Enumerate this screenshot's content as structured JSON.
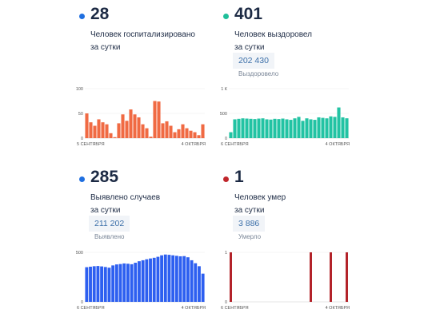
{
  "panels": [
    {
      "id": "hosp",
      "value": "28",
      "desc": [
        "Человек госпитализировано",
        "за сутки"
      ],
      "sub_value": "",
      "sub_label": "",
      "color": "#1f6fe0",
      "bar_color": "#f06a43"
    },
    {
      "id": "recov",
      "value": "401",
      "desc": [
        "Человек выздоровел",
        "за сутки"
      ],
      "sub_value": "202 430",
      "sub_label": "Выздоровело",
      "color": "#1fbf9a",
      "bar_color": "#22c3a3"
    },
    {
      "id": "cases",
      "value": "285",
      "desc": [
        "Выявлено случаев",
        "за сутки"
      ],
      "sub_value": "211 202",
      "sub_label": "Выявлено",
      "color": "#1f6fe0",
      "bar_color": "#2d5ff0"
    },
    {
      "id": "deaths",
      "value": "1",
      "desc": [
        "Человек умер",
        "за сутки"
      ],
      "sub_value": "3 886",
      "sub_label": "Умерло",
      "color": "#c0262b",
      "bar_color": "#b3232a"
    }
  ],
  "chart_data": [
    {
      "type": "bar",
      "series_color": "#f06a43",
      "x_labels": [
        "5 СЕНТЯБРЯ",
        "4 ОКТЯБРЯ"
      ],
      "y_ticks": [
        "0",
        "50",
        "100"
      ],
      "ylim": [
        0,
        100
      ],
      "values": [
        50,
        32,
        25,
        38,
        32,
        28,
        10,
        2,
        30,
        48,
        35,
        58,
        48,
        42,
        28,
        20,
        3,
        75,
        74,
        30,
        34,
        25,
        12,
        18,
        28,
        20,
        15,
        12,
        6,
        28
      ]
    },
    {
      "type": "bar",
      "series_color": "#22c3a3",
      "x_labels": [
        "6 СЕНТЯБРЯ",
        "4 ОКТЯБРЯ"
      ],
      "y_ticks": [
        "0",
        "500",
        "1 К"
      ],
      "ylim": [
        0,
        1000
      ],
      "values": [
        120,
        380,
        390,
        400,
        395,
        390,
        385,
        395,
        400,
        380,
        375,
        390,
        385,
        395,
        380,
        370,
        400,
        430,
        350,
        400,
        380,
        370,
        420,
        410,
        400,
        440,
        430,
        620,
        420,
        401
      ]
    },
    {
      "type": "bar",
      "series_color": "#2d5ff0",
      "x_labels": [
        "6 СЕНТЯБРЯ",
        "4 ОКТЯБРЯ"
      ],
      "y_ticks": [
        "0",
        "500"
      ],
      "ylim": [
        0,
        500
      ],
      "values": [
        350,
        355,
        360,
        362,
        358,
        352,
        345,
        368,
        378,
        382,
        388,
        385,
        380,
        395,
        410,
        420,
        430,
        438,
        445,
        455,
        470,
        478,
        475,
        470,
        465,
        460,
        462,
        450,
        420,
        390,
        360,
        285
      ]
    },
    {
      "type": "bar",
      "series_color": "#b3232a",
      "x_labels": [
        "6 СЕНТЯБРЯ",
        "4 ОКТЯБРЯ"
      ],
      "y_ticks": [
        "0",
        "1"
      ],
      "ylim": [
        0,
        1
      ],
      "values": [
        1,
        0,
        0,
        0,
        0,
        0,
        0,
        0,
        0,
        0,
        0,
        0,
        0,
        0,
        0,
        0,
        0,
        0,
        0,
        0,
        1,
        0,
        0,
        0,
        0,
        1,
        0,
        0,
        0,
        1
      ]
    }
  ]
}
